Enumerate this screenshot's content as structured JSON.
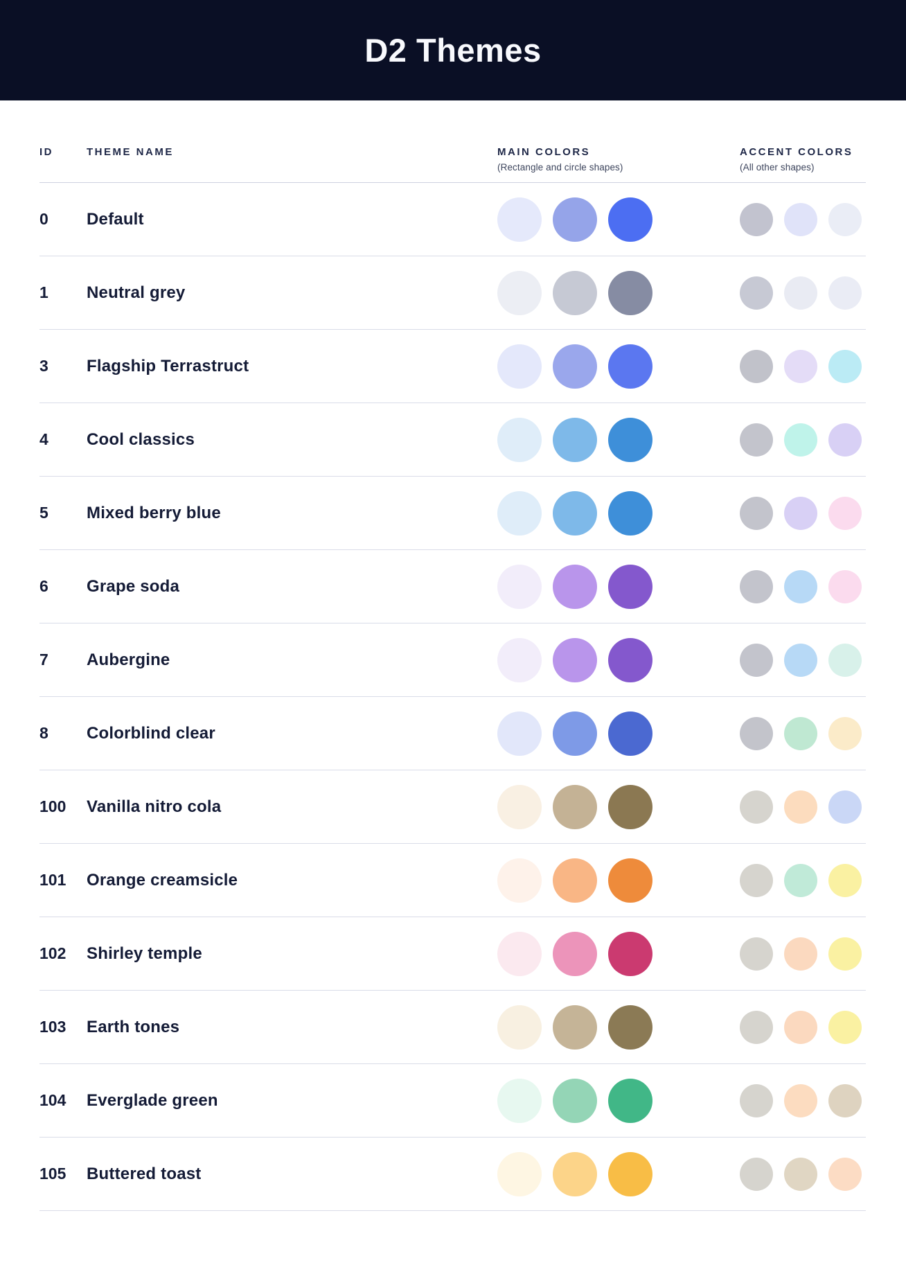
{
  "header": {
    "title": "D2 Themes",
    "bg_color": "#0a0f25",
    "title_color": "#f8f9fd"
  },
  "columns": {
    "id_label": "ID",
    "theme_name_label": "THEME NAME",
    "main_colors_label": "MAIN COLORS",
    "main_colors_sub": "(Rectangle and circle shapes)",
    "accent_colors_label": "ACCENT COLORS",
    "accent_colors_sub": "(All other shapes)"
  },
  "themes": [
    {
      "id": "0",
      "name": "Default",
      "main": [
        "#e5e9fb",
        "#95a4e9",
        "#4c6ef2"
      ],
      "accent": [
        "#c2c3cf",
        "#e0e3f9",
        "#eaedf6"
      ]
    },
    {
      "id": "1",
      "name": "Neutral grey",
      "main": [
        "#eceef4",
        "#c6c9d4",
        "#868ca3"
      ],
      "accent": [
        "#c7c9d4",
        "#e9ebf3",
        "#eaecf5"
      ]
    },
    {
      "id": "3",
      "name": "Flagship Terrastruct",
      "main": [
        "#e4e8fb",
        "#9aa7ec",
        "#5b77f0"
      ],
      "accent": [
        "#c1c2ca",
        "#e4dcf7",
        "#bbebf5"
      ]
    },
    {
      "id": "4",
      "name": "Cool classics",
      "main": [
        "#dfedf9",
        "#7eb9e9",
        "#3e8fd9"
      ],
      "accent": [
        "#c3c4cc",
        "#bff3ea",
        "#d8d0f5"
      ]
    },
    {
      "id": "5",
      "name": "Mixed berry blue",
      "main": [
        "#dfedf9",
        "#7eb9e9",
        "#3e8fd9"
      ],
      "accent": [
        "#c3c4cc",
        "#d8d0f5",
        "#fbdbee"
      ]
    },
    {
      "id": "6",
      "name": "Grape soda",
      "main": [
        "#f2edfa",
        "#b995eb",
        "#8458cd"
      ],
      "accent": [
        "#c3c4cc",
        "#b7d9f6",
        "#fbdbee"
      ]
    },
    {
      "id": "7",
      "name": "Aubergine",
      "main": [
        "#f2edfa",
        "#b995eb",
        "#8458cd"
      ],
      "accent": [
        "#c3c4cc",
        "#b7d9f6",
        "#d8f1ea"
      ]
    },
    {
      "id": "8",
      "name": "Colorblind clear",
      "main": [
        "#e2e7fa",
        "#7e9ae7",
        "#4b69d1"
      ],
      "accent": [
        "#c3c4cb",
        "#bfe8d2",
        "#fbebc9"
      ]
    },
    {
      "id": "100",
      "name": "Vanilla nitro cola",
      "main": [
        "#f9f0e3",
        "#c4b295",
        "#8b7852"
      ],
      "accent": [
        "#d6d4ce",
        "#fcdcbe",
        "#cad7f6"
      ]
    },
    {
      "id": "101",
      "name": "Orange creamsicle",
      "main": [
        "#fef2ea",
        "#f9b685",
        "#ee8b3b"
      ],
      "accent": [
        "#d6d4ce",
        "#c0ead8",
        "#faf1a2"
      ]
    },
    {
      "id": "102",
      "name": "Shirley temple",
      "main": [
        "#fbe9ef",
        "#ec94ba",
        "#cb3a70"
      ],
      "accent": [
        "#d6d4ce",
        "#fbd9bf",
        "#faf1a2"
      ]
    },
    {
      "id": "103",
      "name": "Earth tones",
      "main": [
        "#f8f0e1",
        "#c5b497",
        "#8b7a55"
      ],
      "accent": [
        "#d6d4ce",
        "#fbd9bf",
        "#faf1a2"
      ]
    },
    {
      "id": "104",
      "name": "Everglade green",
      "main": [
        "#e7f8f0",
        "#94d5b6",
        "#41b787"
      ],
      "accent": [
        "#d6d4ce",
        "#fcdcc0",
        "#ded3c0"
      ]
    },
    {
      "id": "105",
      "name": "Buttered toast",
      "main": [
        "#fef6e3",
        "#fcd489",
        "#f8bd46"
      ],
      "accent": [
        "#d6d4ce",
        "#e0d6c3",
        "#fcdcc4"
      ]
    }
  ]
}
